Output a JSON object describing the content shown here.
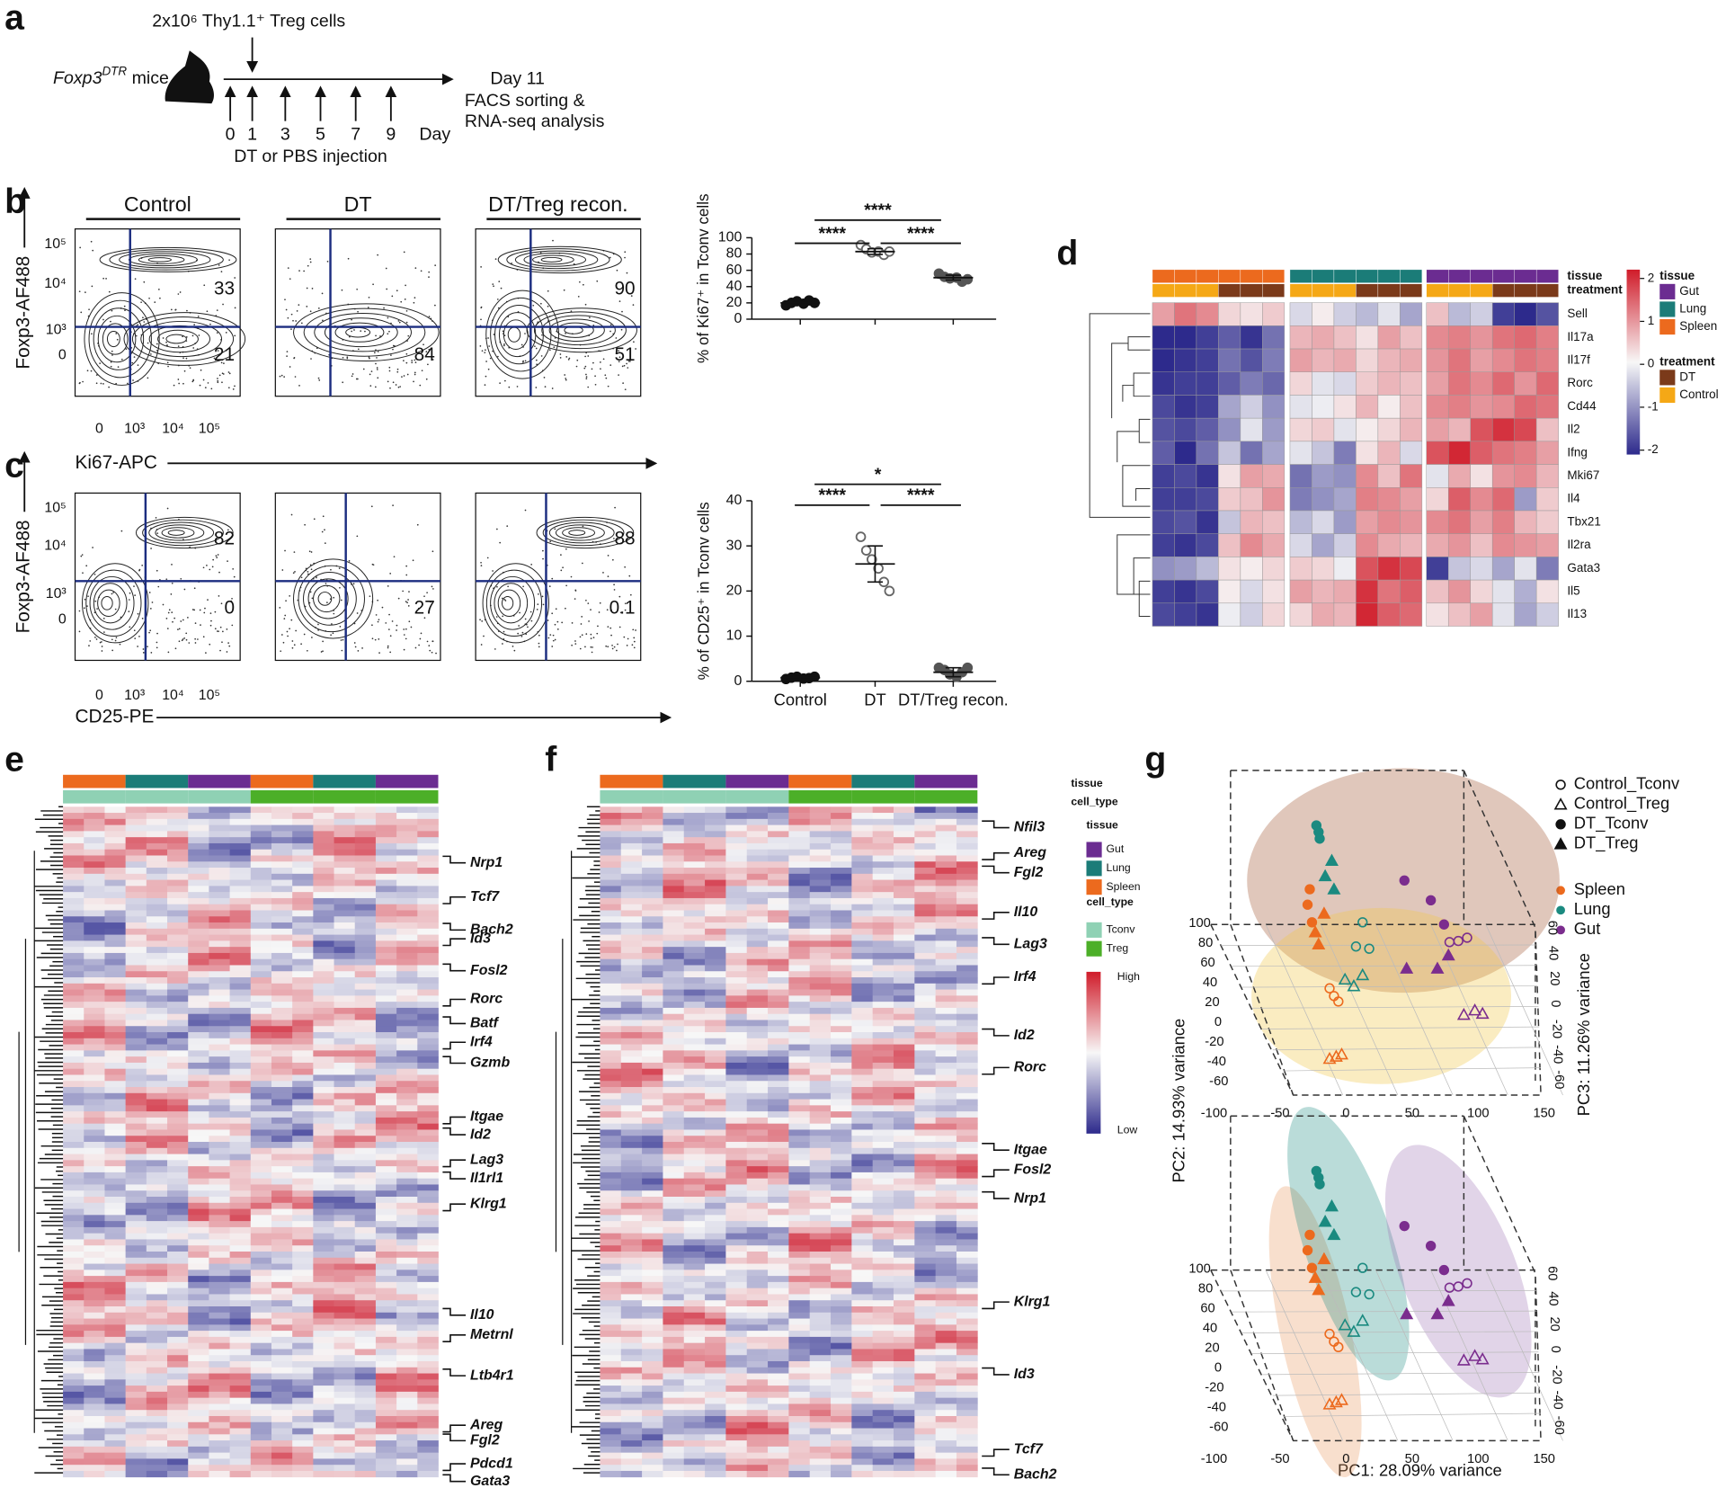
{
  "panel_labels": {
    "a": "a",
    "b": "b",
    "c": "c",
    "d": "d",
    "e": "e",
    "f": "f",
    "g": "g"
  },
  "schematic": {
    "cells_text": "2x10⁶ Thy1.1⁺ Treg cells",
    "mice_name": "Foxp3",
    "mice_sup": "DTR",
    "mice_suffix": " mice",
    "day11": "Day 11",
    "facs": "FACS sorting &",
    "rnaseq": "RNA-seq analysis",
    "days": [
      0,
      1,
      3,
      5,
      7,
      9
    ],
    "day_label": "Day",
    "injection": "DT or PBS injection"
  },
  "flow": {
    "columns": [
      "Control",
      "DT",
      "DT/Treg recon."
    ],
    "y_label": "Foxp3-AF488",
    "b_x_label": "Ki67-APC",
    "c_x_label": "CD25-PE",
    "y_ticks": [
      "10⁵",
      "10⁴",
      "10³",
      "0"
    ],
    "x_ticks": [
      "0",
      "10³",
      "10⁴",
      "10⁵"
    ],
    "b_quadrants": [
      {
        "upper": 33,
        "lower": 21
      },
      {
        "lower": 84
      },
      {
        "upper": 90,
        "lower": 51
      }
    ],
    "c_quadrants": [
      {
        "upper": 82,
        "lower": 0
      },
      {
        "lower": 27
      },
      {
        "upper": 88,
        "lower": 0.1
      }
    ]
  },
  "chart_data": [
    {
      "type": "dot",
      "ylabel": "% of Ki67⁺ in Tconv cells",
      "categories": [
        null,
        null,
        null
      ],
      "points": [
        [
          17,
          20,
          22,
          19,
          23,
          20
        ],
        [
          91,
          86,
          82,
          83,
          79,
          83
        ],
        [
          56,
          52,
          50,
          51,
          46,
          49
        ]
      ],
      "means": [
        20,
        83,
        51
      ],
      "sd": [
        2,
        3.5,
        3
      ],
      "colors": [
        "#111111",
        "#666666",
        "#555555"
      ],
      "ylim": [
        0,
        100
      ],
      "yticks": [
        0,
        20,
        40,
        60,
        80,
        100
      ],
      "significance": [
        "****",
        "****",
        "****"
      ]
    },
    {
      "type": "dot",
      "ylabel": "% of CD25⁺ in Tconv cells",
      "categories": [
        "Control",
        "DT",
        "DT/Treg recon."
      ],
      "points": [
        [
          0.5,
          0.8,
          1,
          0.6,
          0.7,
          1
        ],
        [
          32,
          29,
          27,
          25,
          22,
          20
        ],
        [
          3,
          2.5,
          1.5,
          1,
          2,
          3
        ]
      ],
      "means": [
        0.8,
        26,
        2
      ],
      "sd": [
        0.3,
        4,
        1
      ],
      "colors": [
        "#111111",
        "#666666",
        "#555555"
      ],
      "ylim": [
        0,
        40
      ],
      "yticks": [
        0,
        10,
        20,
        30,
        40
      ],
      "significance": [
        "****",
        "****",
        "*"
      ]
    },
    {
      "type": "heatmap",
      "row_labels": [
        "Sell",
        "Il17a",
        "Il17f",
        "Rorc",
        "Cd44",
        "Il2",
        "Ifng",
        "Mki67",
        "Il4",
        "Tbx21",
        "Il2ra",
        "Gata3",
        "Il5",
        "Il13"
      ],
      "annotation_labels": [
        "tissue",
        "treatment"
      ],
      "column_tissue": [
        "Spleen",
        "Spleen",
        "Spleen",
        "Spleen",
        "Spleen",
        "Spleen",
        "Lung",
        "Lung",
        "Lung",
        "Lung",
        "Lung",
        "Lung",
        "Gut",
        "Gut",
        "Gut",
        "Gut",
        "Gut",
        "Gut"
      ],
      "column_treatment": [
        "Control",
        "Control",
        "Control",
        "DT",
        "DT",
        "DT",
        "Control",
        "Control",
        "Control",
        "DT",
        "DT",
        "DT",
        "Control",
        "Control",
        "Control",
        "DT",
        "DT",
        "DT"
      ],
      "values": [
        [
          0.8,
          1.2,
          1.0,
          0.3,
          0.2,
          0.4,
          -0.3,
          0.1,
          -0.4,
          -0.6,
          -0.2,
          -0.8,
          0.5,
          -0.6,
          -0.4,
          -1.8,
          -2.0,
          -1.6
        ],
        [
          -2.0,
          -2.0,
          -1.8,
          -1.5,
          -1.9,
          -1.3,
          0.6,
          0.7,
          0.5,
          0.2,
          0.8,
          0.5,
          1.0,
          1.1,
          0.9,
          1.2,
          1.3,
          1.1
        ],
        [
          -2.0,
          -1.9,
          -1.8,
          -1.3,
          -1.6,
          -1.2,
          0.8,
          0.6,
          0.7,
          0.3,
          0.6,
          0.7,
          0.9,
          1.2,
          0.8,
          1.0,
          1.2,
          1.1
        ],
        [
          -1.9,
          -1.8,
          -1.8,
          -1.5,
          -1.2,
          -1.4,
          0.3,
          -0.2,
          -0.3,
          0.4,
          0.6,
          0.5,
          0.8,
          1.2,
          1.0,
          1.3,
          0.9,
          1.3
        ],
        [
          -1.7,
          -1.9,
          -1.8,
          -0.8,
          -0.4,
          -1.0,
          -0.2,
          -0.1,
          0.2,
          0.6,
          0.1,
          0.5,
          1.0,
          1.1,
          0.9,
          1.0,
          1.3,
          1.2
        ],
        [
          -1.6,
          -1.7,
          -1.5,
          -1.0,
          -0.2,
          -0.9,
          0.3,
          0.4,
          -0.2,
          0.1,
          0.3,
          0.6,
          0.8,
          0.6,
          1.5,
          1.8,
          1.6,
          0.5
        ],
        [
          -1.5,
          -2.0,
          -1.3,
          -0.5,
          -1.3,
          -0.8,
          -0.2,
          -0.5,
          -1.2,
          0.2,
          0.6,
          -0.3,
          1.5,
          1.9,
          1.4,
          1.2,
          1.1,
          0.8
        ],
        [
          -1.8,
          -1.7,
          -1.9,
          0.2,
          0.8,
          0.7,
          -1.3,
          -0.9,
          -1.0,
          1.0,
          0.5,
          1.2,
          -0.2,
          0.7,
          0.2,
          0.9,
          1.0,
          0.6
        ],
        [
          -1.8,
          -1.8,
          -1.7,
          0.4,
          0.5,
          0.9,
          -1.2,
          -1.0,
          -0.8,
          1.1,
          1.0,
          0.8,
          0.3,
          1.4,
          1.0,
          1.3,
          -0.9,
          0.4
        ],
        [
          -1.7,
          -1.6,
          -1.9,
          -0.5,
          0.6,
          0.5,
          -0.6,
          -0.3,
          -0.9,
          0.8,
          1.0,
          0.9,
          1.0,
          1.2,
          0.8,
          1.1,
          0.6,
          0.4
        ],
        [
          -1.8,
          -1.9,
          -1.7,
          0.5,
          1.0,
          0.7,
          -0.3,
          -0.8,
          -0.4,
          1.0,
          0.7,
          0.6,
          0.7,
          0.9,
          0.5,
          1.0,
          0.9,
          0.8
        ],
        [
          -1.0,
          -0.9,
          -0.6,
          0.2,
          0.1,
          0.3,
          0.4,
          0.3,
          -0.1,
          1.5,
          1.8,
          1.6,
          -1.8,
          -0.5,
          -0.3,
          -0.8,
          -0.2,
          -1.2
        ],
        [
          -1.8,
          -1.9,
          -1.7,
          0.1,
          -0.3,
          0.2,
          0.8,
          0.6,
          0.7,
          1.8,
          1.2,
          1.4,
          0.5,
          0.9,
          0.3,
          -0.2,
          -0.7,
          0.2
        ],
        [
          -1.7,
          -1.8,
          -1.9,
          -0.1,
          -0.4,
          0.3,
          0.3,
          0.7,
          0.6,
          1.9,
          1.4,
          1.3,
          0.2,
          0.5,
          0.8,
          -0.2,
          -0.8,
          -0.4
        ]
      ],
      "zlim": [
        -2,
        2
      ],
      "colorbar_ticks": [
        2,
        1,
        0,
        -1,
        -2
      ],
      "colors": {
        "low": "#2d2a8c",
        "mid": "#f7f7f7",
        "high": "#d01c2a"
      },
      "legends": [
        {
          "title": "tissue",
          "items": [
            {
              "name": "Gut",
              "color": "#6b2c91"
            },
            {
              "name": "Lung",
              "color": "#1b7c78"
            },
            {
              "name": "Spleen",
              "color": "#ec6a1e"
            }
          ]
        },
        {
          "title": "treatment",
          "items": [
            {
              "name": "DT",
              "color": "#7b3a1a"
            },
            {
              "name": "Control",
              "color": "#f5a816"
            }
          ]
        }
      ]
    }
  ],
  "heatmap_e": {
    "tissue": [
      "Spleen",
      "Lung",
      "Gut",
      "Spleen",
      "Lung",
      "Gut"
    ],
    "cell_type": [
      "Tconv",
      "Tconv",
      "Tconv",
      "Treg",
      "Treg",
      "Treg"
    ],
    "genes": [
      "Nrp1",
      "Tcf7",
      "Bach2",
      "Id3",
      "Fosl2",
      "Rorc",
      "Batf",
      "Irf4",
      "Gzmb",
      "Itgae",
      "Id2",
      "Lag3",
      "Il1rl1",
      "Klrg1",
      "Il10",
      "Metrnl",
      "Ltb4r1",
      "Areg",
      "Fgl2",
      "Pdcd1",
      "Gata3"
    ]
  },
  "heatmap_f": {
    "tissue": [
      "Spleen",
      "Lung",
      "Gut",
      "Spleen",
      "Lung",
      "Gut"
    ],
    "cell_type": [
      "Tconv",
      "Tconv",
      "Tconv",
      "Treg",
      "Treg",
      "Treg"
    ],
    "genes": [
      "Nfil3",
      "Areg",
      "Fgl2",
      "Il10",
      "Lag3",
      "Irf4",
      "Id2",
      "Rorc",
      "Itgae",
      "Fosl2",
      "Nrp1",
      "Klrg1",
      "Id3",
      "Tcf7",
      "Bach2"
    ]
  },
  "ef_legend": {
    "annotation_labels": [
      "tissue",
      "cell_type"
    ],
    "tissue_title": "tissue",
    "tissue_items": [
      {
        "name": "Gut",
        "color": "#6b2c91"
      },
      {
        "name": "Lung",
        "color": "#1b7c78"
      },
      {
        "name": "Spleen",
        "color": "#ec6a1e"
      }
    ],
    "cell_type_title": "cell_type",
    "cell_type_items": [
      {
        "name": "Tconv",
        "color": "#8fd1b4"
      },
      {
        "name": "Treg",
        "color": "#4caf28"
      }
    ],
    "high": "High",
    "low": "Low"
  },
  "pca": {
    "group_legend": [
      "Control_Tconv",
      "Control_Treg",
      "DT_Tconv",
      "DT_Treg"
    ],
    "tissue_legend": [
      {
        "name": "Spleen",
        "color": "#ec6a1e"
      },
      {
        "name": "Lung",
        "color": "#1b8a80"
      },
      {
        "name": "Gut",
        "color": "#7b2d8e"
      }
    ],
    "pc1_label": "PC1: 28.09% variance",
    "pc2_label": "PC2: 14.93% variance",
    "pc3_label": "PC3: 11.26% variance",
    "left_ticks": [
      100,
      80,
      60,
      40,
      20,
      0,
      -20,
      -40,
      -60
    ],
    "right_ticks": [
      60,
      40,
      20,
      0,
      -20,
      -40,
      -60
    ],
    "bottom_ticks": [
      -100,
      -50,
      0,
      50,
      100,
      150
    ]
  }
}
